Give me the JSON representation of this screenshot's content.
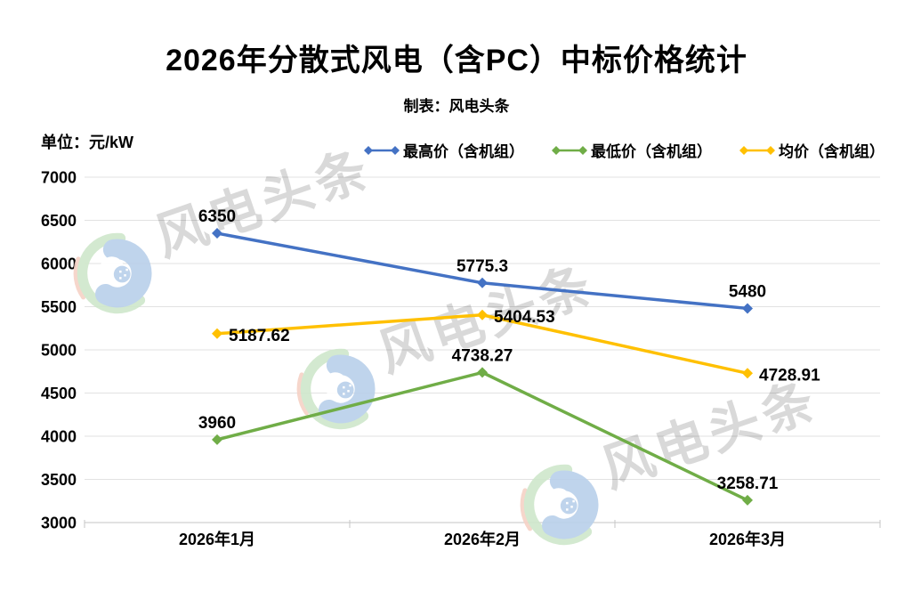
{
  "header": {
    "title": "2026年分散式风电（含PC）中标价格统计",
    "subtitle": "制表：风电头条"
  },
  "watermark": {
    "text": "风电头条",
    "logo": "wind-headlines-logo"
  },
  "chart_data": {
    "type": "line",
    "unit_label": "单位：元/kW",
    "categories": [
      "2026年1月",
      "2026年2月",
      "2026年3月"
    ],
    "series": [
      {
        "name": "最高价（含机组）",
        "color": "#4472C4",
        "values": [
          6350,
          5775.3,
          5480
        ],
        "labels": [
          "6350",
          "5775.3",
          "5480"
        ],
        "label_placement": [
          "above",
          "above",
          "above"
        ]
      },
      {
        "name": "最低价（含机组）",
        "color": "#70AD47",
        "values": [
          3960,
          4738.27,
          3258.71
        ],
        "labels": [
          "3960",
          "4738.27",
          "3258.71"
        ],
        "label_placement": [
          "above",
          "above",
          "above"
        ]
      },
      {
        "name": "均价（含机组）",
        "color": "#FFC000",
        "values": [
          5187.62,
          5404.53,
          4728.91
        ],
        "labels": [
          "5187.62",
          "5404.53",
          "4728.91"
        ],
        "label_placement": [
          "right",
          "right",
          "right"
        ]
      }
    ],
    "ylim": [
      3000,
      7000
    ],
    "yticks": [
      3000,
      3500,
      4000,
      4500,
      5000,
      5500,
      6000,
      6500,
      7000
    ],
    "xlabel": "",
    "ylabel": "元/kW",
    "grid": "horizontal",
    "legend_position": "top-right",
    "marker": "diamond",
    "grid_color": "#e2e2e2",
    "axis_color": "#c6c6c6",
    "label_color": "#000000"
  }
}
